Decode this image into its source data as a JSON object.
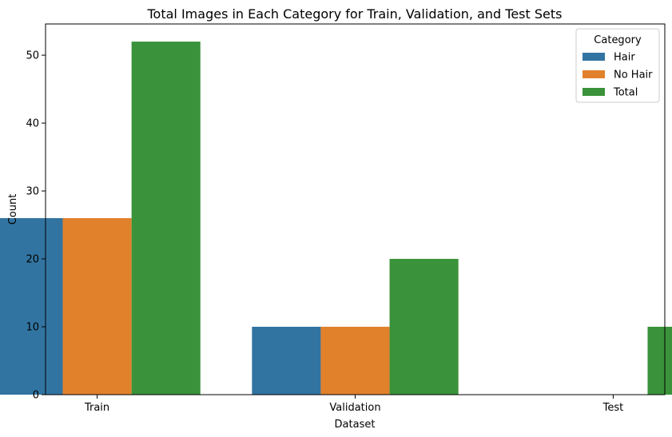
{
  "chart_data": {
    "type": "bar",
    "title": "Total Images in Each Category for Train, Validation, and Test Sets",
    "xlabel": "Dataset",
    "ylabel": "Count",
    "categories": [
      "Train",
      "Validation",
      "Test"
    ],
    "series": [
      {
        "name": "Hair",
        "color": "#3274a1",
        "values": [
          26,
          10,
          0
        ]
      },
      {
        "name": "No Hair",
        "color": "#e1812c",
        "values": [
          26,
          10,
          0
        ]
      },
      {
        "name": "Total",
        "color": "#3a923a",
        "values": [
          52,
          20,
          10
        ]
      }
    ],
    "ylim": [
      0,
      54.6
    ],
    "yticks": [
      0,
      10,
      20,
      30,
      40,
      50
    ],
    "grid": false,
    "legend": {
      "title": "Category",
      "position": "top-right"
    }
  }
}
